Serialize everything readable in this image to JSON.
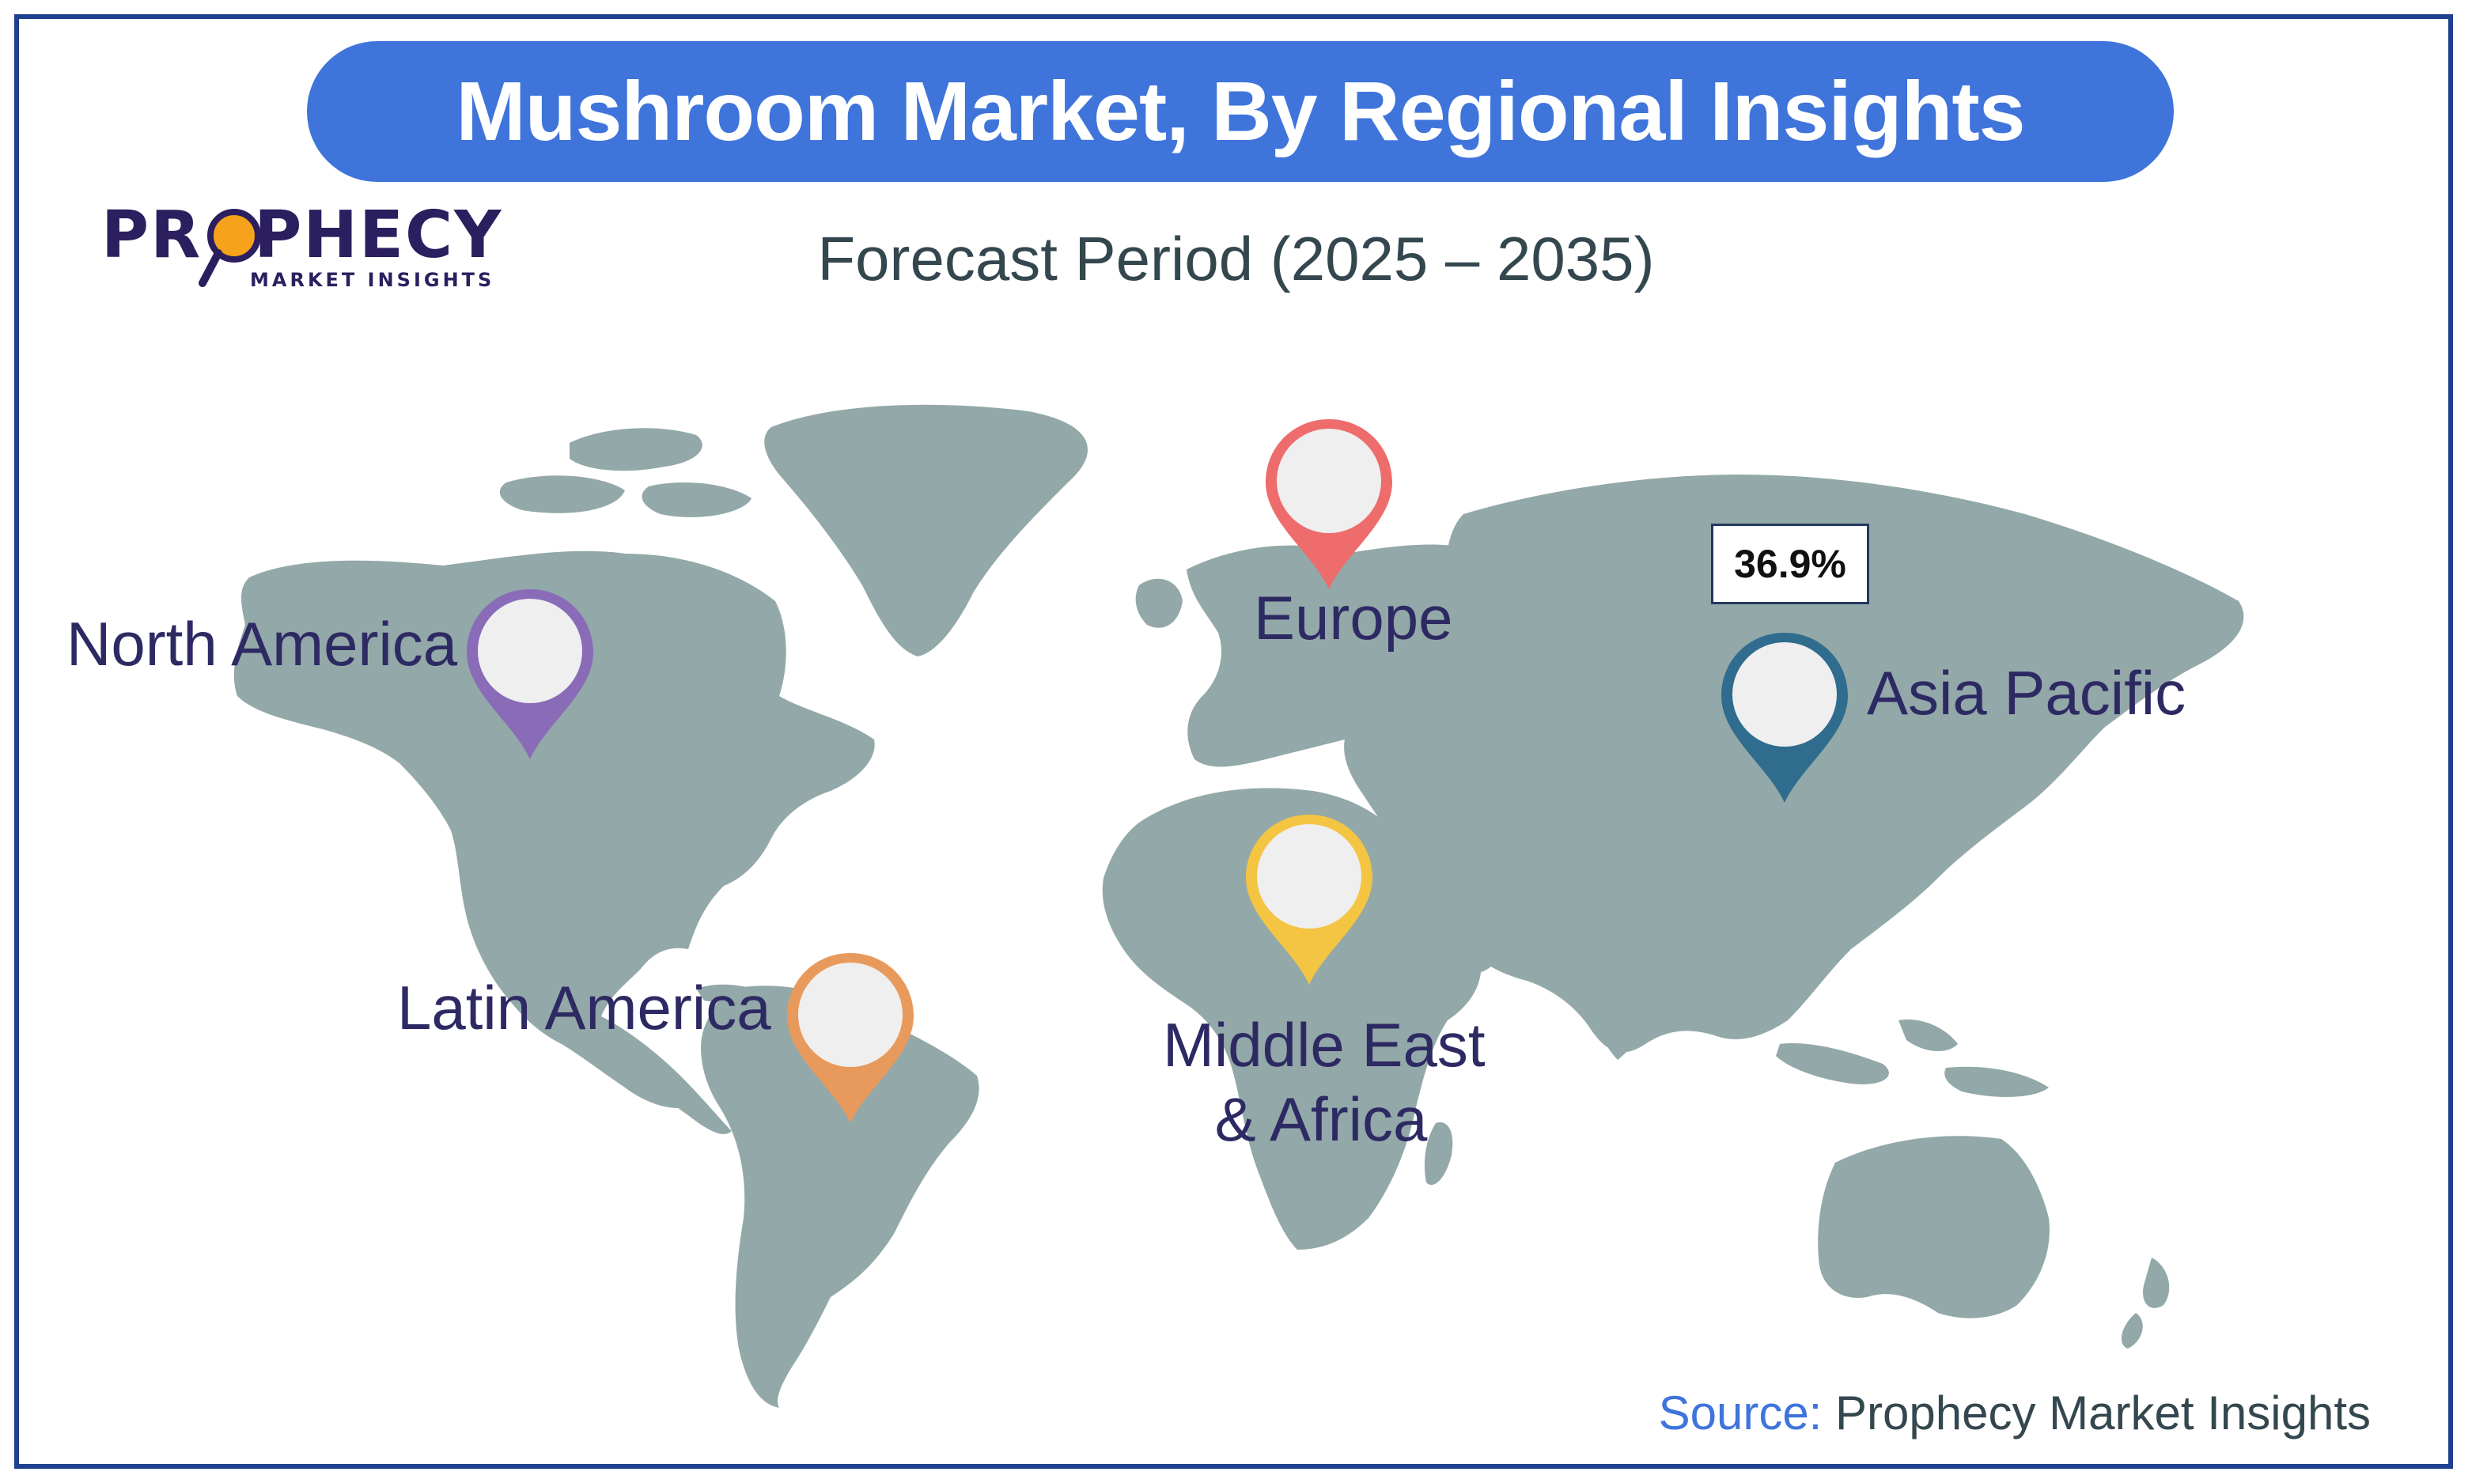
{
  "title": "Mushroom Market, By Regional Insights",
  "subtitle": "Forecast Period (2025 – 2035)",
  "logo": {
    "name": "PROPHECY",
    "tagline": "MARKET INSIGHTS"
  },
  "regions": [
    {
      "name": "North America",
      "pin_color": "#8a6bb8"
    },
    {
      "name": "Europe",
      "pin_color": "#ef6c6c"
    },
    {
      "name": "Asia Pacific",
      "pin_color": "#2f6c8e",
      "value": "36.9%"
    },
    {
      "name": "Latin America",
      "pin_color": "#e89a5c"
    },
    {
      "name_line1": "Middle East",
      "name_line2": "& Africa",
      "pin_color": "#f4c443"
    }
  ],
  "source": {
    "label": "Source:",
    "text": "Prophecy Market Insights"
  },
  "colors": {
    "title_bg": "#3f74db",
    "land": "#93a8a8",
    "frame": "#1f3f8f",
    "label": "#2d2a63"
  },
  "icons": [
    "location-pin-icon",
    "magnifier-icon"
  ]
}
